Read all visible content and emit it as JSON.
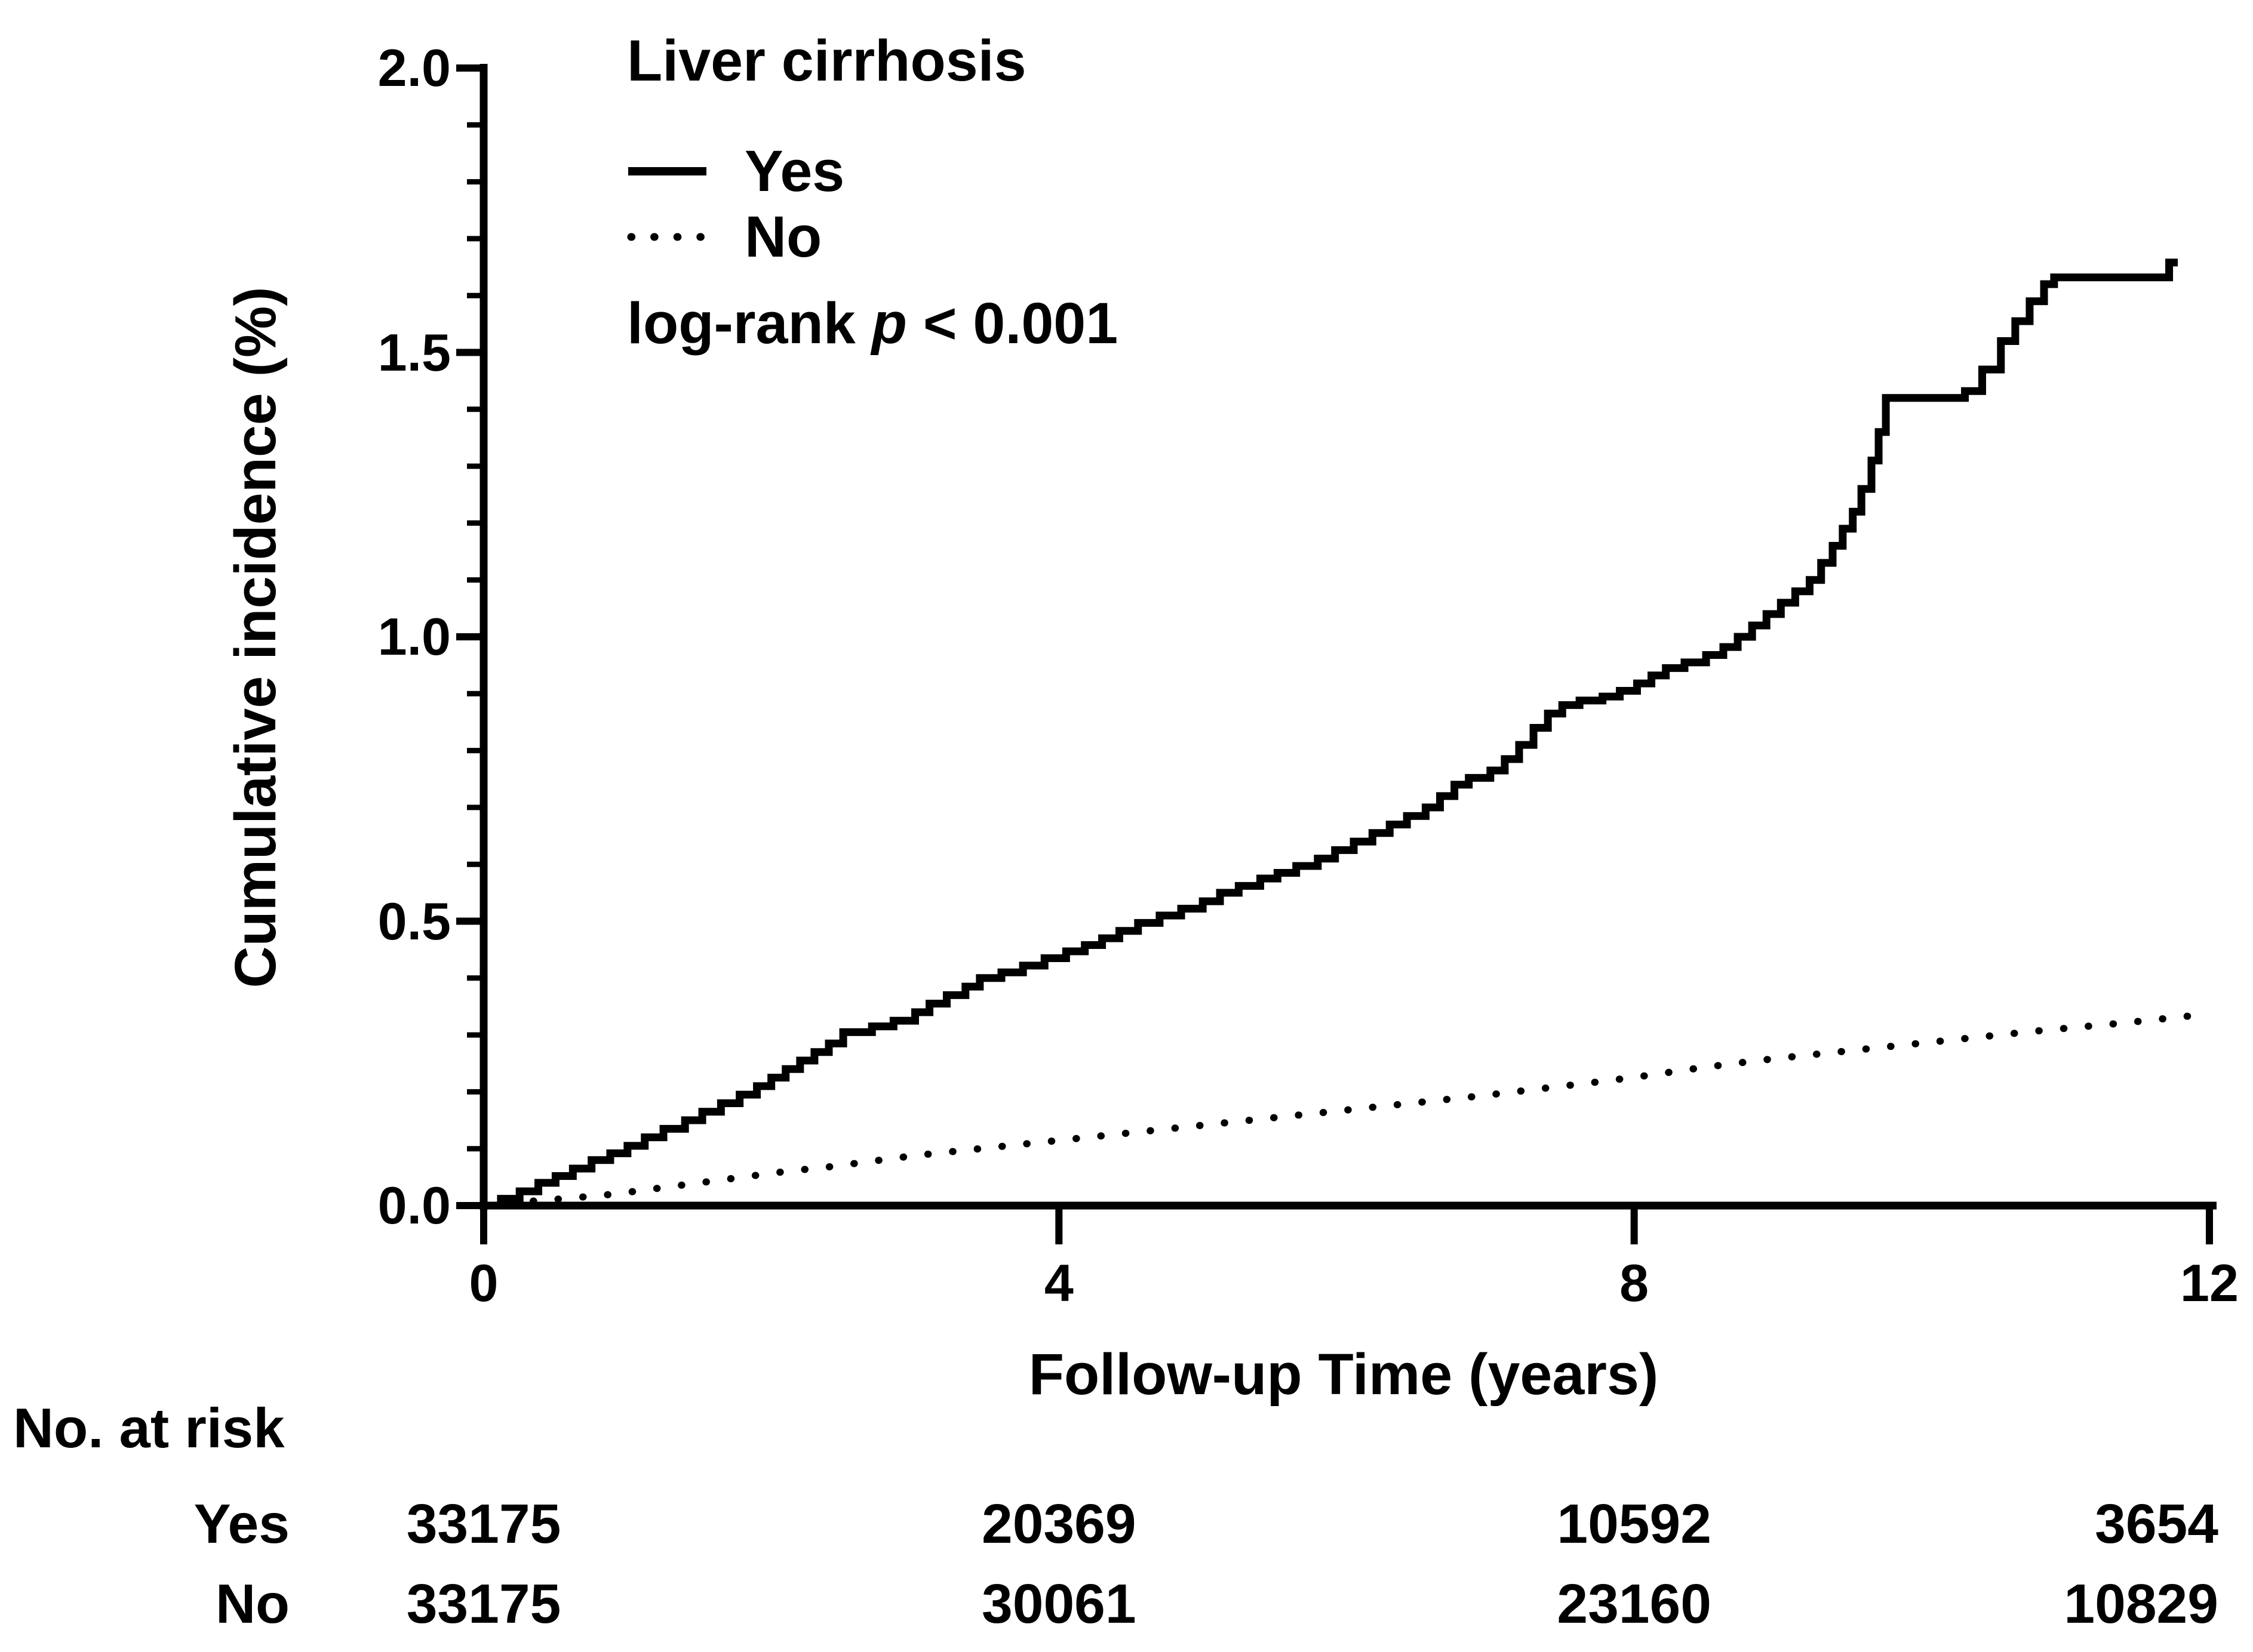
{
  "figure": {
    "background": "#ffffff",
    "ink_color": "#000000"
  },
  "chart_data": {
    "type": "line",
    "subtype": "kaplan-meier-cumulative-incidence",
    "title": "",
    "xlabel": "Follow-up Time (years)",
    "ylabel": "Cumulative incidence (%)",
    "xlim": [
      0,
      12
    ],
    "ylim": [
      0,
      2
    ],
    "x_ticks": [
      0,
      4,
      8,
      12
    ],
    "x_tick_labels": [
      "0",
      "4",
      "8",
      "12"
    ],
    "y_ticks": [
      0,
      0.5,
      1.0,
      1.5,
      2.0
    ],
    "y_tick_labels": [
      "0.0",
      "0.5",
      "1.0",
      "1.5",
      "2.0"
    ],
    "y_minor_tick_step": 0.1,
    "grid": "off",
    "legend": {
      "position": "top-left-inside",
      "title": "Liver cirrhosis",
      "entries": [
        {
          "label": "Yes",
          "style": "solid"
        },
        {
          "label": "No",
          "style": "dotted"
        }
      ]
    },
    "annotation": {
      "text": "log-rank p < 0.001",
      "prefix": "log-rank ",
      "italic_part": "p",
      "suffix": " < 0.001"
    },
    "series": [
      {
        "name": "Yes",
        "style": "solid",
        "interpolation": "step-after",
        "points": [
          [
            0,
            0
          ],
          [
            0.12,
            0.012
          ],
          [
            0.25,
            0.025
          ],
          [
            0.38,
            0.04
          ],
          [
            0.5,
            0.052
          ],
          [
            0.62,
            0.065
          ],
          [
            0.75,
            0.08
          ],
          [
            0.88,
            0.092
          ],
          [
            1.0,
            0.105
          ],
          [
            1.12,
            0.12
          ],
          [
            1.25,
            0.135
          ],
          [
            1.4,
            0.15
          ],
          [
            1.52,
            0.165
          ],
          [
            1.65,
            0.18
          ],
          [
            1.78,
            0.195
          ],
          [
            1.9,
            0.21
          ],
          [
            2.0,
            0.225
          ],
          [
            2.1,
            0.24
          ],
          [
            2.2,
            0.255
          ],
          [
            2.3,
            0.27
          ],
          [
            2.4,
            0.285
          ],
          [
            2.5,
            0.305
          ],
          [
            2.7,
            0.315
          ],
          [
            2.85,
            0.325
          ],
          [
            3.0,
            0.34
          ],
          [
            3.1,
            0.355
          ],
          [
            3.22,
            0.37
          ],
          [
            3.35,
            0.385
          ],
          [
            3.45,
            0.4
          ],
          [
            3.6,
            0.41
          ],
          [
            3.75,
            0.422
          ],
          [
            3.9,
            0.435
          ],
          [
            4.05,
            0.447
          ],
          [
            4.18,
            0.458
          ],
          [
            4.3,
            0.47
          ],
          [
            4.42,
            0.483
          ],
          [
            4.55,
            0.497
          ],
          [
            4.7,
            0.51
          ],
          [
            4.85,
            0.522
          ],
          [
            5.0,
            0.535
          ],
          [
            5.12,
            0.55
          ],
          [
            5.25,
            0.562
          ],
          [
            5.4,
            0.575
          ],
          [
            5.52,
            0.585
          ],
          [
            5.65,
            0.597
          ],
          [
            5.8,
            0.61
          ],
          [
            5.92,
            0.625
          ],
          [
            6.05,
            0.64
          ],
          [
            6.18,
            0.655
          ],
          [
            6.3,
            0.67
          ],
          [
            6.42,
            0.685
          ],
          [
            6.55,
            0.7
          ],
          [
            6.65,
            0.72
          ],
          [
            6.75,
            0.74
          ],
          [
            6.85,
            0.752
          ],
          [
            7.0,
            0.765
          ],
          [
            7.1,
            0.785
          ],
          [
            7.2,
            0.81
          ],
          [
            7.3,
            0.84
          ],
          [
            7.4,
            0.865
          ],
          [
            7.5,
            0.88
          ],
          [
            7.62,
            0.888
          ],
          [
            7.78,
            0.895
          ],
          [
            7.9,
            0.905
          ],
          [
            8.02,
            0.918
          ],
          [
            8.12,
            0.932
          ],
          [
            8.22,
            0.945
          ],
          [
            8.35,
            0.955
          ],
          [
            8.5,
            0.968
          ],
          [
            8.62,
            0.982
          ],
          [
            8.72,
            1.0
          ],
          [
            8.82,
            1.02
          ],
          [
            8.92,
            1.04
          ],
          [
            9.02,
            1.06
          ],
          [
            9.12,
            1.08
          ],
          [
            9.22,
            1.1
          ],
          [
            9.3,
            1.13
          ],
          [
            9.38,
            1.16
          ],
          [
            9.45,
            1.19
          ],
          [
            9.52,
            1.22
          ],
          [
            9.58,
            1.26
          ],
          [
            9.65,
            1.31
          ],
          [
            9.7,
            1.36
          ],
          [
            9.75,
            1.42
          ],
          [
            10.3,
            1.432
          ],
          [
            10.42,
            1.47
          ],
          [
            10.55,
            1.52
          ],
          [
            10.65,
            1.555
          ],
          [
            10.75,
            1.59
          ],
          [
            10.85,
            1.62
          ],
          [
            10.92,
            1.632
          ],
          [
            11.72,
            1.658
          ],
          [
            11.78,
            1.658
          ]
        ]
      },
      {
        "name": "No",
        "style": "dotted",
        "interpolation": "linear",
        "points": [
          [
            0,
            0.002
          ],
          [
            0.3,
            0.007
          ],
          [
            0.6,
            0.013
          ],
          [
            0.9,
            0.02
          ],
          [
            1.2,
            0.03
          ],
          [
            1.5,
            0.04
          ],
          [
            1.8,
            0.05
          ],
          [
            2.1,
            0.06
          ],
          [
            2.4,
            0.068
          ],
          [
            2.7,
            0.078
          ],
          [
            3.0,
            0.088
          ],
          [
            3.3,
            0.096
          ],
          [
            3.6,
            0.104
          ],
          [
            3.9,
            0.112
          ],
          [
            4.2,
            0.12
          ],
          [
            4.5,
            0.128
          ],
          [
            4.8,
            0.136
          ],
          [
            5.1,
            0.144
          ],
          [
            5.4,
            0.152
          ],
          [
            5.7,
            0.16
          ],
          [
            6.0,
            0.168
          ],
          [
            6.3,
            0.176
          ],
          [
            6.6,
            0.184
          ],
          [
            6.9,
            0.192
          ],
          [
            7.2,
            0.201
          ],
          [
            7.5,
            0.21
          ],
          [
            7.8,
            0.219
          ],
          [
            8.1,
            0.229
          ],
          [
            8.4,
            0.24
          ],
          [
            8.7,
            0.25
          ],
          [
            9.0,
            0.259
          ],
          [
            9.3,
            0.267
          ],
          [
            9.6,
            0.275
          ],
          [
            9.9,
            0.283
          ],
          [
            10.2,
            0.291
          ],
          [
            10.5,
            0.299
          ],
          [
            10.8,
            0.307
          ],
          [
            11.1,
            0.314
          ],
          [
            11.4,
            0.321
          ],
          [
            11.7,
            0.329
          ],
          [
            11.85,
            0.333
          ]
        ]
      }
    ]
  },
  "risk_table": {
    "title": "No. at risk",
    "time_points": [
      0,
      4,
      8,
      12
    ],
    "rows": [
      {
        "label": "Yes",
        "values": [
          "33175",
          "20369",
          "10592",
          "3654"
        ]
      },
      {
        "label": "No",
        "values": [
          "33175",
          "30061",
          "23160",
          "10829"
        ]
      }
    ]
  }
}
